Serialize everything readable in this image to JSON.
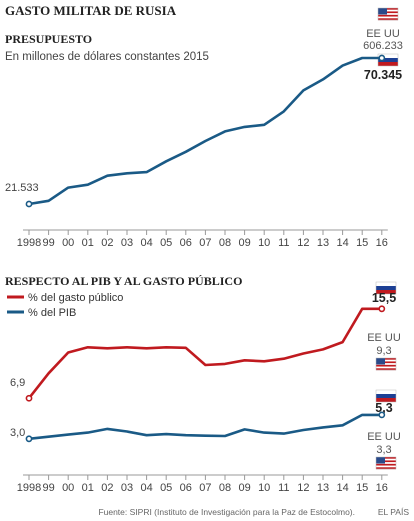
{
  "title": "GASTO MILITAR DE RUSIA",
  "source": "Fuente: SIPRI (Instituto de Investigación para la Paz de Estocolmo).",
  "credit": "EL PAÍS",
  "colors": {
    "blue": "#1a5a86",
    "red": "#c01a1f",
    "grey_text": "#666666",
    "grid": "#cccccc"
  },
  "chart_data": [
    {
      "type": "line",
      "title": "PRESUPUESTO",
      "subtitle": "En millones de dólares constantes 2015",
      "categories": [
        "1998",
        "99",
        "00",
        "01",
        "02",
        "03",
        "04",
        "05",
        "06",
        "07",
        "08",
        "09",
        "10",
        "11",
        "12",
        "13",
        "14",
        "15",
        "16"
      ],
      "series": [
        {
          "values": [
            21533,
            22600,
            27000,
            28000,
            31000,
            31800,
            32200,
            35800,
            39000,
            42600,
            45800,
            47300,
            48000,
            52500,
            59500,
            63200,
            67800,
            70345,
            70345
          ]
        }
      ],
      "ylim": [
        15000,
        75000
      ],
      "grid": false,
      "annotations": {
        "start_value": "21.533",
        "end_value": "70.345",
        "us_label": "EE UU",
        "us_value": "606.233",
        "us_icon": "us-flag-icon",
        "ru_icon": "russia-flag-icon"
      }
    },
    {
      "type": "line",
      "title": "RESPECTO AL PIB Y AL GASTO PÚBLICO",
      "categories": [
        "1998",
        "99",
        "00",
        "01",
        "02",
        "03",
        "04",
        "05",
        "06",
        "07",
        "08",
        "09",
        "10",
        "11",
        "12",
        "13",
        "14",
        "15",
        "16"
      ],
      "series": [
        {
          "name": "% del gasto público",
          "color": "#c01a1f",
          "values": [
            6.9,
            9.3,
            11.3,
            11.8,
            11.7,
            11.8,
            11.7,
            11.8,
            11.75,
            10.1,
            10.2,
            10.55,
            10.45,
            10.7,
            11.2,
            11.6,
            12.3,
            15.5,
            15.5
          ]
        },
        {
          "name": "% del PIB",
          "color": "#1a5a86",
          "values": [
            3.0,
            3.2,
            3.4,
            3.6,
            3.95,
            3.7,
            3.35,
            3.45,
            3.35,
            3.3,
            3.27,
            3.9,
            3.6,
            3.5,
            3.85,
            4.1,
            4.3,
            5.3,
            5.3
          ]
        }
      ],
      "ylim": [
        0,
        18
      ],
      "grid": false,
      "annotations": {
        "red_start": "6,9",
        "blue_start": "3,0",
        "red_end": "15,5",
        "blue_end": "5,3",
        "us_label_1": "EE UU",
        "us_value_1": "9,3",
        "us_label_2": "EE UU",
        "us_value_2": "3,3",
        "us_icon": "us-flag-icon",
        "ru_icon": "russia-flag-icon"
      }
    }
  ]
}
